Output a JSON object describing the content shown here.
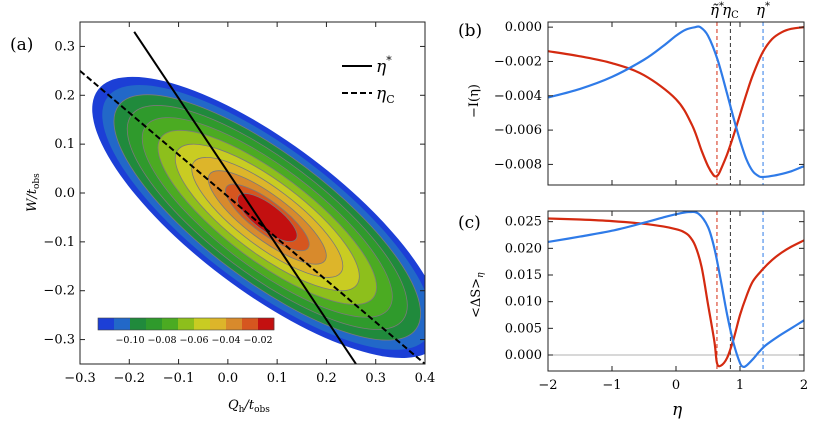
{
  "chart_data": [
    {
      "panel": "(a)",
      "type": "heatmap",
      "xlabel": "Q_h/t_obs",
      "ylabel": "W/t_obs",
      "xlim": [
        -0.3,
        0.4
      ],
      "ylim": [
        -0.35,
        0.35
      ],
      "xticks": [
        "−0.3",
        "−0.2",
        "−0.1",
        "0.0",
        "0.1",
        "0.2",
        "0.3",
        "0.4"
      ],
      "yticks": [
        "0.3",
        "0.2",
        "0.1",
        "0.0",
        "−0.1",
        "−0.2",
        "−0.3"
      ],
      "contour_center": [
        0.08,
        -0.05
      ],
      "contour_levels": [
        -0.11,
        -0.1,
        -0.09,
        -0.08,
        -0.07,
        -0.06,
        -0.05,
        -0.04,
        -0.03,
        -0.02,
        -0.01
      ],
      "colorbar_labels": [
        "−0.10",
        "−0.08",
        "−0.06",
        "−0.04",
        "−0.02"
      ],
      "colorbar_colors": [
        "#1c3fd6",
        "#2268c8",
        "#208a3c",
        "#2f9a2c",
        "#4bab22",
        "#8dbf1c",
        "#c9cc22",
        "#ddb52a",
        "#d88a2c",
        "#d6561f",
        "#c31010"
      ],
      "lines": [
        {
          "label": "η*",
          "style": "solid",
          "points": [
            [
              -0.19,
              0.33
            ],
            [
              0.26,
              -0.35
            ]
          ]
        },
        {
          "label": "η",
          "subscript": "C",
          "style": "dashed",
          "points": [
            [
              -0.3,
              0.25
            ],
            [
              0.4,
              -0.35
            ]
          ]
        }
      ],
      "legend": [
        {
          "label": "η",
          "superscript": "*",
          "style": "solid"
        },
        {
          "label": "η",
          "subscript": "C",
          "style": "dashed"
        }
      ]
    },
    {
      "panel": "(b)",
      "type": "line",
      "ylabel": "−I(η)",
      "xlim": [
        -2,
        2
      ],
      "ylim": [
        -0.0092,
        0.0003
      ],
      "yticks": [
        "0.000",
        "−0.002",
        "−0.004",
        "−0.006",
        "−0.008"
      ],
      "series": [
        {
          "name": "red",
          "color": "#d42a10",
          "x": [
            -2.0,
            -1.5,
            -1.0,
            -0.5,
            0.0,
            0.25,
            0.4,
            0.5,
            0.58,
            0.62,
            0.66,
            0.7,
            0.8,
            0.9,
            1.0,
            1.1,
            1.2,
            1.35,
            1.5,
            1.65,
            1.8,
            2.0
          ],
          "y": [
            -0.0014,
            -0.0017,
            -0.0021,
            -0.0028,
            -0.0042,
            -0.0057,
            -0.0072,
            -0.0081,
            -0.0086,
            -0.0087,
            -0.0086,
            -0.0083,
            -0.0074,
            -0.0063,
            -0.0051,
            -0.0039,
            -0.0028,
            -0.0015,
            -0.0007,
            -0.0003,
            -0.0001,
            0.0
          ]
        },
        {
          "name": "blue",
          "color": "#2f7be8",
          "x": [
            -2.0,
            -1.5,
            -1.0,
            -0.5,
            -0.2,
            0.0,
            0.15,
            0.3,
            0.38,
            0.5,
            0.65,
            0.8,
            0.9,
            1.0,
            1.1,
            1.2,
            1.3,
            1.36,
            1.45,
            1.6,
            1.8,
            2.0
          ],
          "y": [
            -0.0041,
            -0.0036,
            -0.0029,
            -0.0019,
            -0.0011,
            -0.0005,
            -0.00015,
            0.0,
            0.0,
            -0.0005,
            -0.0019,
            -0.0039,
            -0.0053,
            -0.0066,
            -0.0077,
            -0.0084,
            -0.0087,
            -0.00873,
            -0.0087,
            -0.0086,
            -0.0084,
            -0.0081
          ]
        }
      ],
      "vlines": [
        {
          "x": 0.64,
          "color": "#d42a10",
          "label": "η̃*"
        },
        {
          "x": 0.85,
          "color": "#333333",
          "label": "ηC"
        },
        {
          "x": 1.36,
          "color": "#2f7be8",
          "label": "η*"
        }
      ],
      "top_labels": [
        {
          "text": "η̃",
          "sup": "*",
          "color": "#d42a10",
          "x": 0.64
        },
        {
          "text": "η",
          "sub": "C",
          "color": "#000000",
          "x": 0.85
        },
        {
          "text": "η",
          "sup": "*",
          "color": "#2f7be8",
          "x": 1.36
        }
      ]
    },
    {
      "panel": "(c)",
      "type": "line",
      "xlabel": "η",
      "ylabel": "<ΔS>η",
      "xlim": [
        -2,
        2
      ],
      "ylim": [
        -0.003,
        0.027
      ],
      "xticks": [
        "−2",
        "−1",
        "0",
        "1",
        "2"
      ],
      "yticks": [
        "0.025",
        "0.020",
        "0.015",
        "0.010",
        "0.005",
        "0.000"
      ],
      "series": [
        {
          "name": "red",
          "color": "#d42a10",
          "x": [
            -2.0,
            -1.5,
            -1.0,
            -0.5,
            -0.2,
            0.0,
            0.1,
            0.2,
            0.3,
            0.4,
            0.5,
            0.6,
            0.64,
            0.7,
            0.8,
            0.9,
            1.0,
            1.1,
            1.2,
            1.35,
            1.5,
            1.65,
            1.8,
            2.0
          ],
          "y": [
            0.0256,
            0.0254,
            0.0251,
            0.0246,
            0.0241,
            0.0236,
            0.0232,
            0.0224,
            0.0205,
            0.0165,
            0.0095,
            0.0025,
            -0.0015,
            -0.002,
            -0.0005,
            0.003,
            0.0075,
            0.011,
            0.0138,
            0.016,
            0.0178,
            0.0192,
            0.0203,
            0.0215
          ]
        },
        {
          "name": "blue",
          "color": "#2f7be8",
          "x": [
            -2.0,
            -1.5,
            -1.0,
            -0.5,
            -0.2,
            0.0,
            0.2,
            0.35,
            0.5,
            0.6,
            0.7,
            0.8,
            0.9,
            1.0,
            1.05,
            1.1,
            1.2,
            1.3,
            1.4,
            1.6,
            1.8,
            2.0
          ],
          "y": [
            0.0212,
            0.0222,
            0.0233,
            0.0248,
            0.0258,
            0.0264,
            0.0268,
            0.0265,
            0.024,
            0.02,
            0.014,
            0.0075,
            0.0022,
            -0.0015,
            -0.0022,
            -0.002,
            -0.0008,
            0.0006,
            0.0018,
            0.0035,
            0.005,
            0.0065
          ]
        }
      ],
      "vlines": [
        {
          "x": 0.64,
          "color": "#d42a10"
        },
        {
          "x": 0.85,
          "color": "#333333"
        },
        {
          "x": 1.36,
          "color": "#2f7be8"
        }
      ]
    }
  ]
}
